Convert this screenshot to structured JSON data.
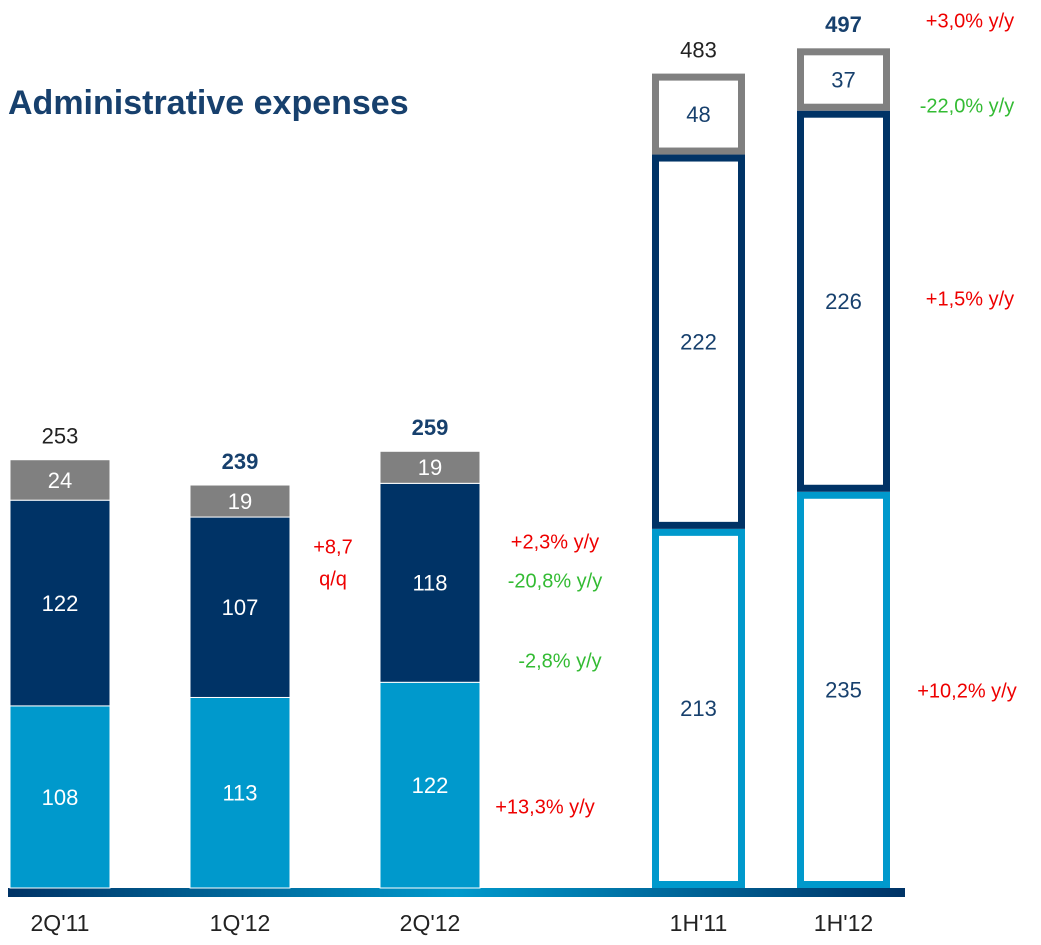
{
  "chart_data": {
    "type": "stacked_bar",
    "title": "Administrative expenses",
    "categories": [
      "2Q'11",
      "1Q'12",
      "2Q'12",
      "1H'11",
      "1H'12"
    ],
    "series": [
      {
        "color": "#0099cc",
        "values": [
          108,
          113,
          122,
          213,
          235
        ]
      },
      {
        "color": "#003366",
        "values": [
          122,
          107,
          118,
          222,
          226
        ]
      },
      {
        "color": "#808080",
        "values": [
          24,
          19,
          19,
          48,
          37
        ]
      }
    ],
    "totals": [
      253,
      239,
      259,
      483,
      497
    ],
    "annotations": [
      {
        "text": "+8,7",
        "color": "#ee0000"
      },
      {
        "text": "q/q",
        "color": "#ee0000"
      },
      {
        "text": "+2,3% y/y",
        "color": "#ee0000"
      },
      {
        "text": "-20,8% y/y",
        "color": "#33bb33"
      },
      {
        "text": "-2,8% y/y",
        "color": "#33bb33"
      },
      {
        "text": "+13,3% y/y",
        "color": "#ee0000"
      },
      {
        "text": "+3,0% y/y",
        "color": "#ee0000"
      },
      {
        "text": "-22,0% y/y",
        "color": "#33bb33"
      },
      {
        "text": "+1,5% y/y",
        "color": "#ee0000"
      },
      {
        "text": "+10,2% y/y",
        "color": "#ee0000"
      }
    ]
  }
}
